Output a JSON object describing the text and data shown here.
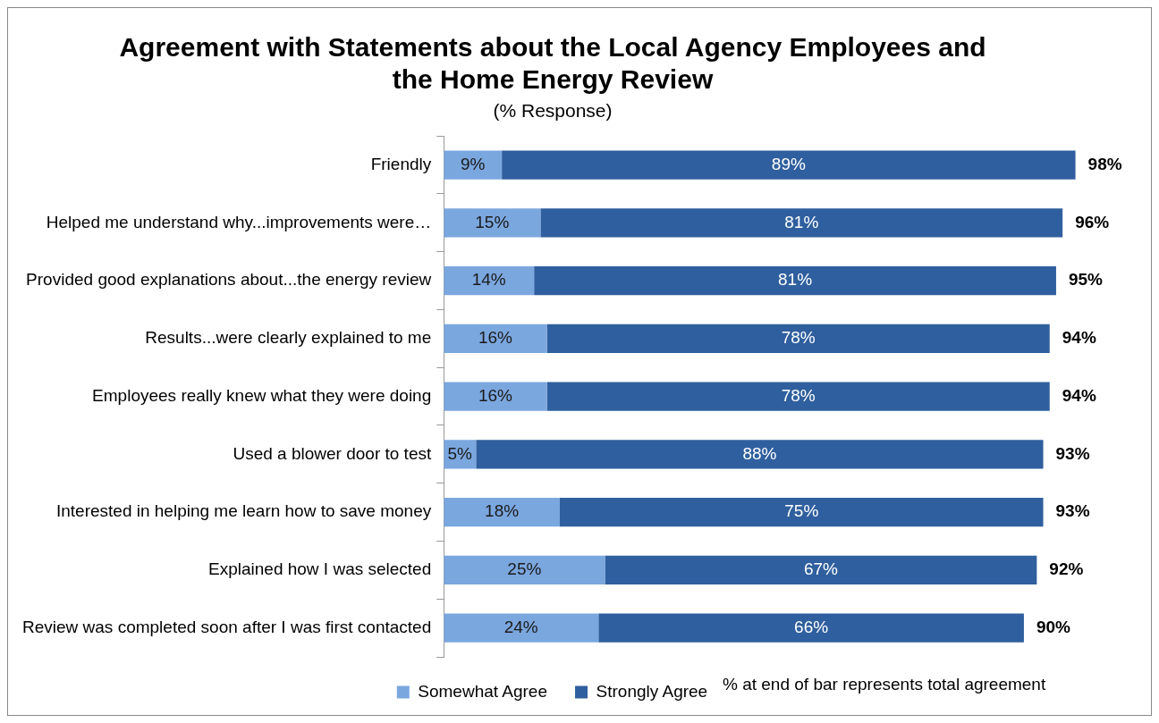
{
  "chart_data": {
    "type": "bar",
    "orientation": "horizontal",
    "stacked": true,
    "title": "Agreement with Statements about the Local Agency Employees and the Home Energy Review",
    "subtitle": "(% Response)",
    "categories": [
      "Friendly",
      "Helped me understand why...improvements were…",
      "Provided good explanations about...the energy review",
      "Results...were clearly explained to me",
      "Employees really knew what they were doing",
      "Used a blower door to test",
      "Interested in helping me learn how to save money",
      "Explained how I was selected",
      "Review was completed soon after I was first contacted"
    ],
    "series": [
      {
        "name": "Somewhat Agree",
        "color": "#7ba7df",
        "values": [
          9,
          15,
          14,
          16,
          16,
          5,
          18,
          25,
          24
        ],
        "value_labels": [
          "9%",
          "15%",
          "14%",
          "16%",
          "16%",
          "5%",
          "18%",
          "25%",
          "24%"
        ]
      },
      {
        "name": "Strongly Agree",
        "color": "#2f5f9e",
        "values": [
          89,
          81,
          81,
          78,
          78,
          88,
          75,
          67,
          66
        ],
        "value_labels": [
          "89%",
          "81%",
          "81%",
          "78%",
          "78%",
          "88%",
          "75%",
          "67%",
          "66%"
        ]
      }
    ],
    "totals": [
      "98%",
      "96%",
      "95%",
      "94%",
      "94%",
      "93%",
      "93%",
      "92%",
      "90%"
    ],
    "grid": false,
    "legend": "bottom",
    "annotations": [
      "% at end of bar represents total agreement"
    ]
  }
}
